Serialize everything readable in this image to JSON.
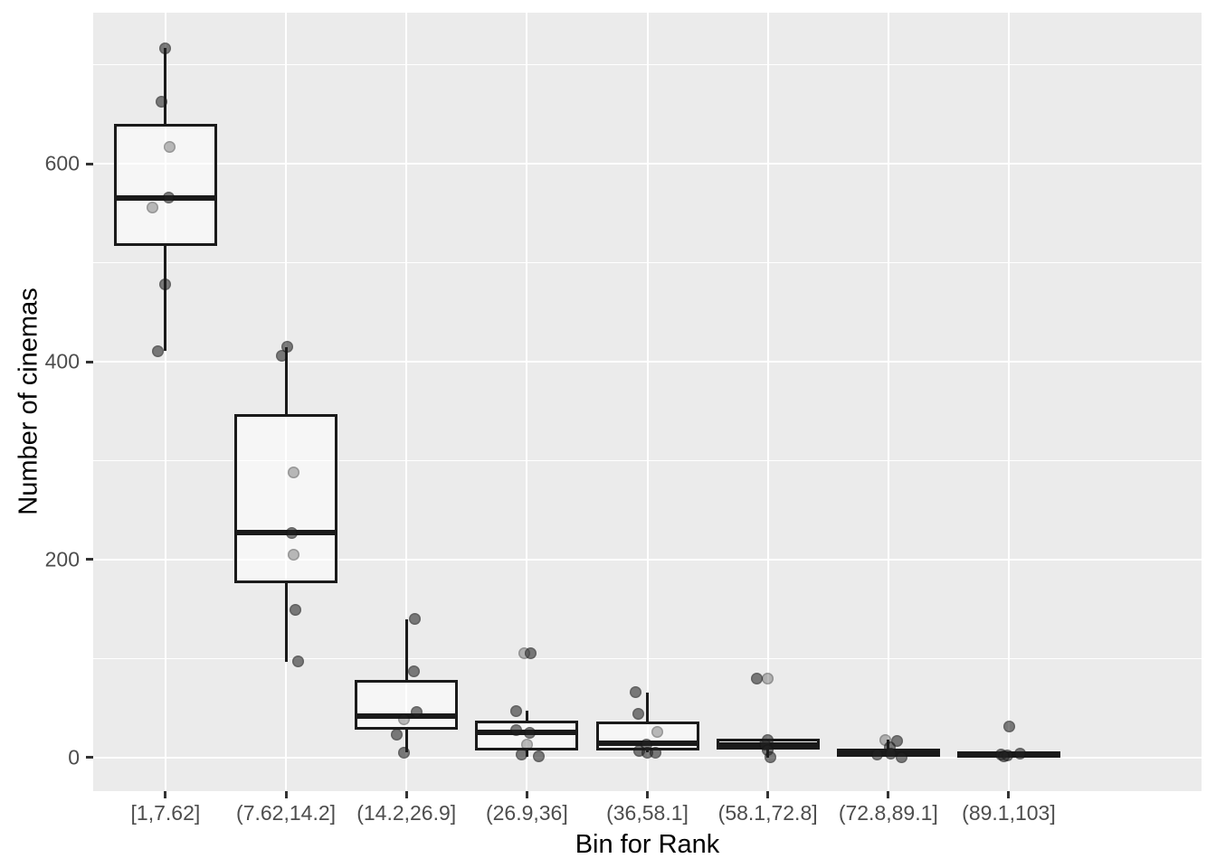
{
  "chart_data": {
    "type": "boxplot",
    "title": "",
    "xlabel": "Bin for Rank",
    "ylabel": "Number of cinemas",
    "categories": [
      "[1,7.62]",
      "(7.62,14.2]",
      "(14.2,26.9]",
      "(26.9,36]",
      "(36,58.1]",
      "(58.1,72.8]",
      "(72.8,89.1]",
      "(89.1,103]"
    ],
    "ylim": [
      -34,
      753
    ],
    "y_ticks": [
      0,
      200,
      400,
      600
    ],
    "y_tick_labels": [
      "0",
      "200",
      "400",
      "600"
    ],
    "y_minor": [
      100,
      300,
      500,
      700
    ],
    "grid": "major-and-minor, white on grey panel",
    "legend_position": "none",
    "series": [
      {
        "category": "[1,7.62]",
        "box": {
          "whisker_low": 411,
          "q1": 517,
          "median": 566,
          "q3": 641,
          "whisker_high": 717
        },
        "points": [
          {
            "v": 717,
            "dx": 0,
            "shade": "dark"
          },
          {
            "v": 663,
            "dx": -4,
            "shade": "dark"
          },
          {
            "v": 617,
            "dx": 5,
            "shade": "light"
          },
          {
            "v": 566,
            "dx": 4,
            "shade": "dark"
          },
          {
            "v": 556,
            "dx": -14,
            "shade": "light"
          },
          {
            "v": 478,
            "dx": 0,
            "shade": "dark"
          },
          {
            "v": 411,
            "dx": -8,
            "shade": "dark"
          }
        ]
      },
      {
        "category": "(7.62,14.2]",
        "box": {
          "whisker_low": 97,
          "q1": 176,
          "median": 227,
          "q3": 347,
          "whisker_high": 415
        },
        "points": [
          {
            "v": 415,
            "dx": 1,
            "shade": "dark"
          },
          {
            "v": 406,
            "dx": -5,
            "shade": "dark"
          },
          {
            "v": 288,
            "dx": 8,
            "shade": "light"
          },
          {
            "v": 227,
            "dx": 6,
            "shade": "dark"
          },
          {
            "v": 205,
            "dx": 8,
            "shade": "light"
          },
          {
            "v": 149,
            "dx": 10,
            "shade": "dark"
          },
          {
            "v": 97,
            "dx": 13,
            "shade": "dark"
          }
        ]
      },
      {
        "category": "(14.2,26.9]",
        "box": {
          "whisker_low": 5,
          "q1": 28,
          "median": 42,
          "q3": 78,
          "whisker_high": 140
        },
        "points": [
          {
            "v": 140,
            "dx": 9,
            "shade": "dark"
          },
          {
            "v": 87,
            "dx": 8,
            "shade": "dark"
          },
          {
            "v": 46,
            "dx": 11,
            "shade": "dark"
          },
          {
            "v": 39,
            "dx": -3,
            "shade": "light"
          },
          {
            "v": 23,
            "dx": -11,
            "shade": "dark"
          },
          {
            "v": 5,
            "dx": -3,
            "shade": "dark"
          }
        ]
      },
      {
        "category": "(26.9,36]",
        "box": {
          "whisker_low": 1,
          "q1": 7,
          "median": 25,
          "q3": 37,
          "whisker_high": 47
        },
        "points": [
          {
            "v": 105,
            "dx": -3,
            "shade": "light"
          },
          {
            "v": 105,
            "dx": 4,
            "shade": "dark"
          },
          {
            "v": 47,
            "dx": -12,
            "shade": "dark"
          },
          {
            "v": 28,
            "dx": -12,
            "shade": "dark"
          },
          {
            "v": 25,
            "dx": 3,
            "shade": "dark"
          },
          {
            "v": 13,
            "dx": 0,
            "shade": "light"
          },
          {
            "v": 3,
            "dx": -6,
            "shade": "dark"
          },
          {
            "v": 1,
            "dx": 13,
            "shade": "dark"
          }
        ]
      },
      {
        "category": "(36,58.1]",
        "box": {
          "whisker_low": 5,
          "q1": 7,
          "median": 14,
          "q3": 36,
          "whisker_high": 66
        },
        "points": [
          {
            "v": 66,
            "dx": -13,
            "shade": "dark"
          },
          {
            "v": 44,
            "dx": -10,
            "shade": "dark"
          },
          {
            "v": 26,
            "dx": 11,
            "shade": "light"
          },
          {
            "v": 13,
            "dx": -1,
            "shade": "dark"
          },
          {
            "v": 7,
            "dx": -9,
            "shade": "dark"
          },
          {
            "v": 5,
            "dx": 0,
            "shade": "dark"
          },
          {
            "v": 5,
            "dx": 9,
            "shade": "dark"
          }
        ]
      },
      {
        "category": "(58.1,72.8]",
        "box": {
          "whisker_low": 0,
          "q1": 8,
          "median": 13,
          "q3": 19,
          "whisker_high": 19
        },
        "points": [
          {
            "v": 80,
            "dx": -12,
            "shade": "dark"
          },
          {
            "v": 80,
            "dx": 0,
            "shade": "light"
          },
          {
            "v": 18,
            "dx": 0,
            "shade": "dark"
          },
          {
            "v": 13,
            "dx": -3,
            "shade": "dark"
          },
          {
            "v": 8,
            "dx": 0,
            "shade": "dark"
          },
          {
            "v": 0,
            "dx": 3,
            "shade": "dark"
          }
        ]
      },
      {
        "category": "(72.8,89.1]",
        "box": {
          "whisker_low": 1,
          "q1": 1,
          "median": 4,
          "q3": 9,
          "whisker_high": 18
        },
        "points": [
          {
            "v": 18,
            "dx": -3,
            "shade": "light"
          },
          {
            "v": 17,
            "dx": 10,
            "shade": "dark"
          },
          {
            "v": 10,
            "dx": 2,
            "shade": "dark"
          },
          {
            "v": 4,
            "dx": 3,
            "shade": "dark"
          },
          {
            "v": 3,
            "dx": -12,
            "shade": "dark"
          },
          {
            "v": 0,
            "dx": 15,
            "shade": "dark"
          }
        ]
      },
      {
        "category": "(89.1,103]",
        "box": {
          "whisker_low": 1,
          "q1": 1,
          "median": 3,
          "q3": 6,
          "whisker_high": 6
        },
        "points": [
          {
            "v": 31,
            "dx": 1,
            "shade": "dark"
          },
          {
            "v": 4,
            "dx": 13,
            "shade": "dark"
          },
          {
            "v": 3,
            "dx": -8,
            "shade": "dark"
          },
          {
            "v": 2,
            "dx": -1,
            "shade": "dark"
          },
          {
            "v": 1,
            "dx": -5,
            "shade": "dark"
          }
        ]
      }
    ]
  },
  "style": {
    "panel_bg": "#EBEBEB",
    "grid_color": "#FFFFFF",
    "box_border_color": "#1A1A1A",
    "box_fill": "rgba(255,255,255,0.55)",
    "median_color": "#1A1A1A",
    "whisker_color": "#1A1A1A",
    "point_dark": "rgba(35,35,35,0.58)",
    "point_light": "rgba(35,35,35,0.30)",
    "point_ring": "rgba(0,0,0,0.18)",
    "axis_tick_color": "#333333",
    "tick_label_color": "#4D4D4D",
    "axis_title_color": "#000000"
  }
}
